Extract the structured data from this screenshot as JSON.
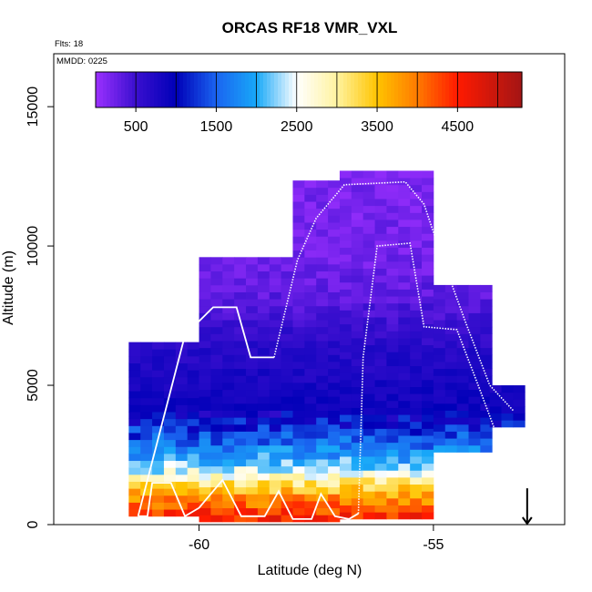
{
  "chart_data": {
    "type": "heatmap",
    "title": "ORCAS RF18 VMR_VXL",
    "flights_label": "Flts: 18",
    "mmdd_label": "MMDD: 0225",
    "xlabel": "Latitude (deg N)",
    "ylabel": "Altitude (m)",
    "xlim": [
      -63.1,
      -52.2
    ],
    "ylim": [
      0,
      16900
    ],
    "x_ticks": [
      -60,
      -55
    ],
    "x_tick_labels": [
      "-60",
      "-55"
    ],
    "y_ticks": [
      0,
      5000,
      10000,
      15000
    ],
    "y_tick_labels": [
      "0",
      "5000",
      "10000",
      "15000"
    ],
    "colorbar": {
      "min": 0,
      "max": 5300,
      "tick_values": [
        500,
        1500,
        2500,
        3500,
        4500
      ],
      "tick_labels": [
        "500",
        "1500",
        "2500",
        "3500",
        "4500"
      ],
      "divider_values": [
        500,
        1000,
        1500,
        2000,
        2500,
        3000,
        3500,
        4000,
        4500,
        5000
      ],
      "color_stops": [
        {
          "v": 0,
          "c": "#9b30ff"
        },
        {
          "v": 500,
          "c": "#3a0fcf"
        },
        {
          "v": 1000,
          "c": "#0000b8"
        },
        {
          "v": 1500,
          "c": "#1a64f0"
        },
        {
          "v": 2000,
          "c": "#18a8f8"
        },
        {
          "v": 2500,
          "c": "#ffffff"
        },
        {
          "v": 3000,
          "c": "#fff3a0"
        },
        {
          "v": 3500,
          "c": "#ffc400"
        },
        {
          "v": 4000,
          "c": "#ff7a00"
        },
        {
          "v": 4500,
          "c": "#ff1a00"
        },
        {
          "v": 5300,
          "c": "#a31515"
        }
      ]
    },
    "grid_cell": {
      "lat_step": 0.25,
      "alt_step": 250
    },
    "profile_regions": [
      {
        "lat_start": -61.5,
        "lat_end": -60.0,
        "alt_bottom": 300,
        "alt_top": 6500
      },
      {
        "lat_start": -60.0,
        "lat_end": -58.0,
        "alt_bottom": 100,
        "alt_top": 9500
      },
      {
        "lat_start": -58.0,
        "lat_end": -57.0,
        "alt_bottom": 100,
        "alt_top": 12300
      },
      {
        "lat_start": -57.0,
        "lat_end": -55.0,
        "alt_bottom": 200,
        "alt_top": 12500
      },
      {
        "lat_start": -55.0,
        "lat_end": -53.8,
        "alt_bottom": 2600,
        "alt_top": 8500
      },
      {
        "lat_start": -53.8,
        "lat_end": -53.2,
        "alt_bottom": 3500,
        "alt_top": 4800
      }
    ],
    "vertical_profile": [
      {
        "alt": 0,
        "value": 4700
      },
      {
        "alt": 500,
        "value": 4300
      },
      {
        "alt": 1000,
        "value": 3800
      },
      {
        "alt": 1500,
        "value": 3100
      },
      {
        "alt": 2000,
        "value": 2300
      },
      {
        "alt": 2500,
        "value": 1900
      },
      {
        "alt": 3000,
        "value": 1500
      },
      {
        "alt": 3500,
        "value": 1200
      },
      {
        "alt": 4000,
        "value": 900
      },
      {
        "alt": 5000,
        "value": 800
      },
      {
        "alt": 6000,
        "value": 700
      },
      {
        "alt": 7000,
        "value": 550
      },
      {
        "alt": 8000,
        "value": 350
      },
      {
        "alt": 9000,
        "value": 250
      },
      {
        "alt": 10000,
        "value": 200
      },
      {
        "alt": 13000,
        "value": 180
      }
    ],
    "flight_track": {
      "segments": [
        {
          "points": [
            [
              -61.3,
              300
            ],
            [
              -61.1,
              300
            ],
            [
              -61.0,
              1500
            ],
            [
              -60.6,
              1500
            ],
            [
              -60.3,
              300
            ],
            [
              -60.0,
              600
            ],
            [
              -59.5,
              1600
            ],
            [
              -59.1,
              300
            ],
            [
              -58.6,
              300
            ],
            [
              -58.3,
              1200
            ],
            [
              -58.0,
              200
            ],
            [
              -57.6,
              200
            ],
            [
              -57.4,
              1100
            ],
            [
              -57.1,
              300
            ],
            [
              -56.8,
              200
            ],
            [
              -56.6,
              400
            ]
          ],
          "style": "solid"
        },
        {
          "points": [
            [
              -61.3,
              300
            ],
            [
              -60.3,
              6800
            ],
            [
              -59.7,
              7800
            ],
            [
              -59.2,
              7800
            ],
            [
              -58.9,
              6000
            ],
            [
              -58.4,
              6000
            ]
          ],
          "style": "solid"
        },
        {
          "points": [
            [
              -58.4,
              6000
            ],
            [
              -57.9,
              9500
            ],
            [
              -57.5,
              11000
            ],
            [
              -56.9,
              12200
            ],
            [
              -55.6,
              12300
            ],
            [
              -55.2,
              11500
            ],
            [
              -54.8,
              9500
            ],
            [
              -54.3,
              7200
            ],
            [
              -53.8,
              5000
            ],
            [
              -53.3,
              4100
            ]
          ],
          "style": "dotted"
        },
        {
          "points": [
            [
              -56.6,
              400
            ],
            [
              -56.5,
              6000
            ],
            [
              -56.2,
              10000
            ],
            [
              -55.5,
              10100
            ],
            [
              -55.2,
              7100
            ],
            [
              -54.5,
              7000
            ],
            [
              -54.0,
              4800
            ],
            [
              -53.6,
              3000
            ]
          ],
          "style": "dotted"
        }
      ]
    },
    "arrow_marker": {
      "lat": -53.0,
      "alt_top": 650,
      "alt_bottom": 0
    }
  }
}
